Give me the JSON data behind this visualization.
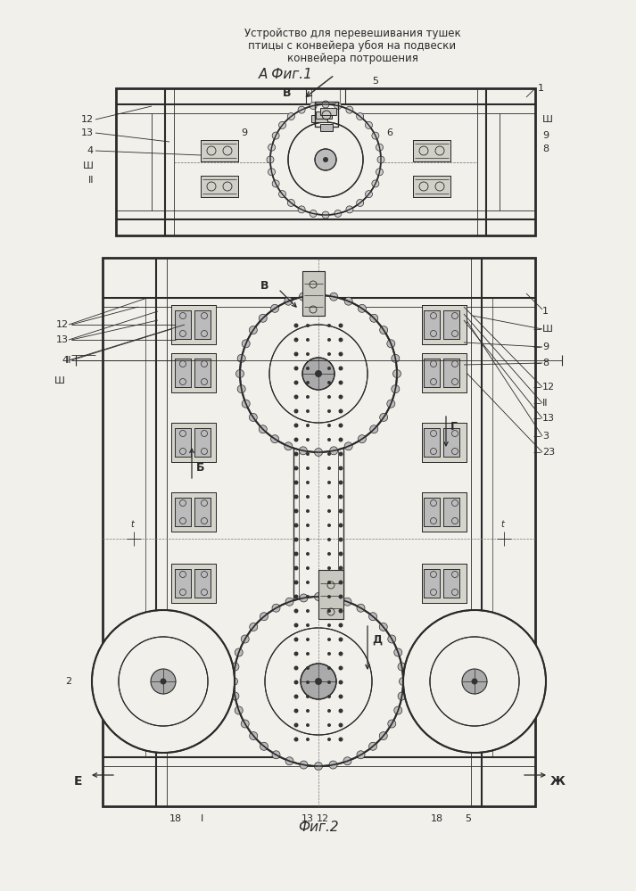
{
  "title_lines": [
    "Устройство для перевешивания тушек",
    "птицы с конвейера убоя на подвески",
    "конвейера потрошения"
  ],
  "bg_color": "#f2f0eb",
  "line_color": "#2a2a2a",
  "dk_color": "#1a1a1a"
}
